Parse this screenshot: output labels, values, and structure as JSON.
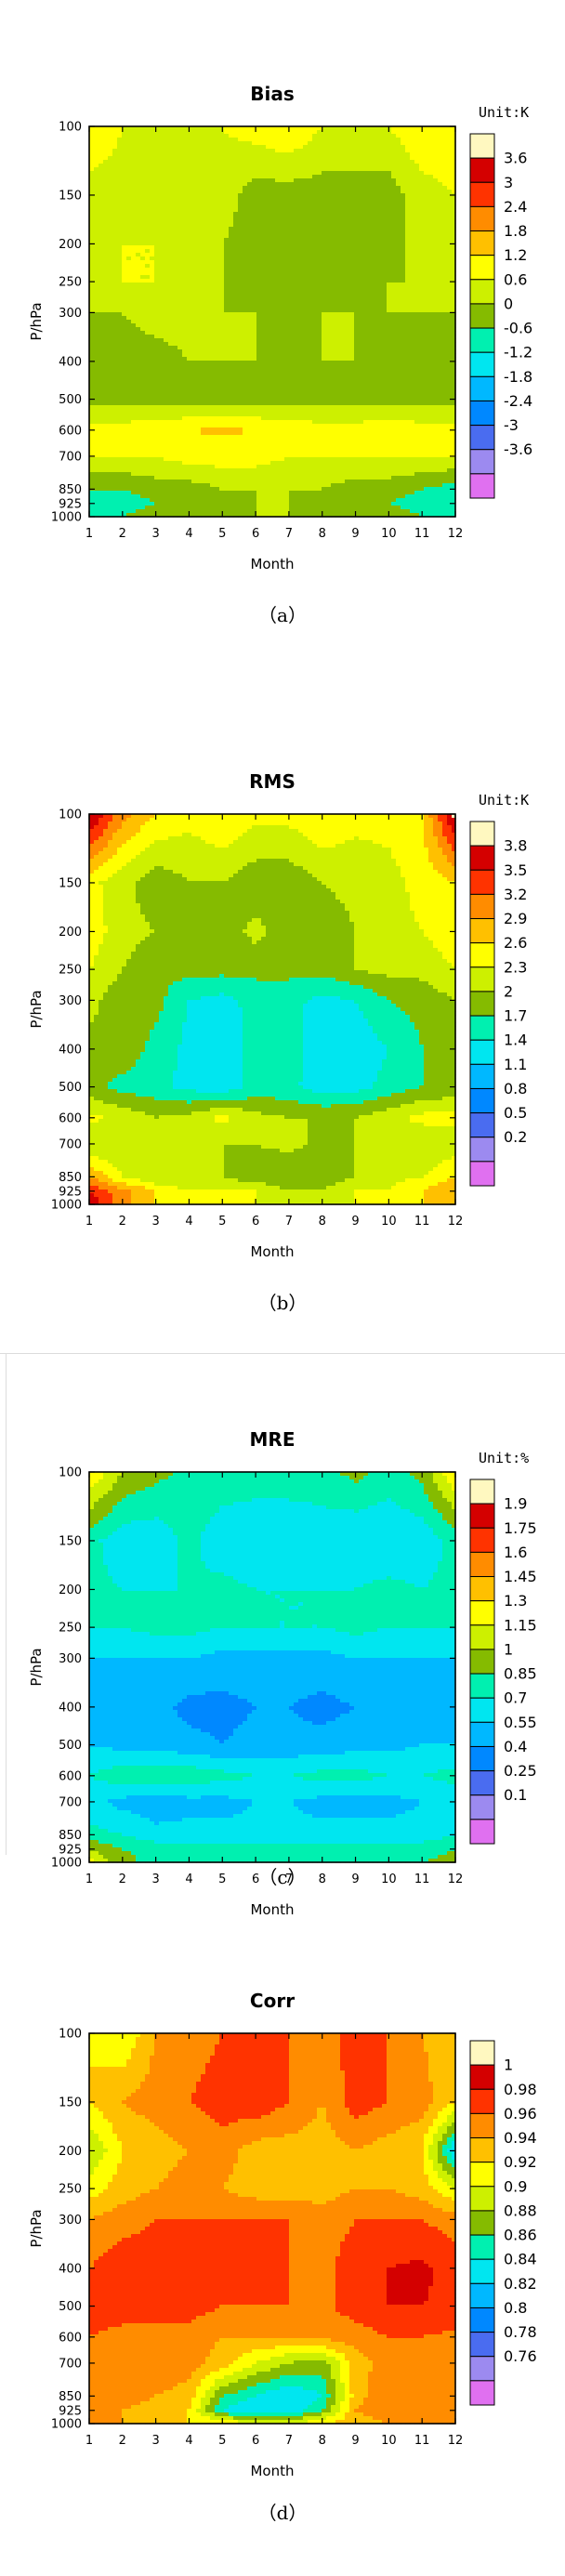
{
  "chart_data": [
    {
      "type": "heatmap",
      "title": "Bias",
      "xlabel": "Month",
      "ylabel": "P/hPa",
      "unit_label": "Unit:K",
      "caption": "（a）",
      "x": [
        1,
        2,
        3,
        4,
        5,
        6,
        7,
        8,
        9,
        10,
        11,
        12
      ],
      "y_levels": [
        100,
        150,
        200,
        250,
        300,
        400,
        500,
        600,
        700,
        850,
        925,
        1000
      ],
      "y_tick_labels": [
        "100",
        "150",
        "200",
        "250",
        "300",
        "400",
        "500",
        "600",
        "700",
        "850",
        "925",
        "1000"
      ],
      "x_tick_labels": [
        "1",
        "2",
        "3",
        "4",
        "5",
        "6",
        "7",
        "8",
        "9",
        "10",
        "11",
        "12"
      ],
      "colorbar_labels": [
        "3.6",
        "3",
        "2.4",
        "1.8",
        "1.2",
        "0.6",
        "0",
        "-0.6",
        "-1.2",
        "-1.8",
        "-2.4",
        "-3",
        "-3.6"
      ],
      "colorbar_colors": [
        "#fff8c0",
        "#d40000",
        "#ff3300",
        "#ff8c00",
        "#ffc000",
        "#ffff00",
        "#cdf000",
        "#85bb00",
        "#00f0b0",
        "#00e6f0",
        "#00b8ff",
        "#0088ff",
        "#4a6cf0",
        "#9c8af0",
        "#e070f0"
      ],
      "values": [
        [
          1.2,
          0.6,
          0.6,
          0.6,
          0.6,
          0.9,
          1.2,
          0.6,
          0.6,
          0.6,
          1.2,
          1.2
        ],
        [
          0.3,
          0.3,
          0.3,
          0.6,
          0.3,
          -0.3,
          -0.3,
          -0.3,
          -0.3,
          -0.3,
          0.3,
          0.6
        ],
        [
          0.6,
          0.6,
          0.6,
          0.3,
          0.0,
          -0.3,
          -0.6,
          -0.6,
          -0.3,
          -0.3,
          0.3,
          0.6
        ],
        [
          0.3,
          0.6,
          0.6,
          0.3,
          0.0,
          -0.3,
          -0.3,
          -0.3,
          -0.3,
          0.0,
          0.0,
          0.3
        ],
        [
          0.0,
          0.0,
          0.3,
          0.3,
          0.0,
          0.0,
          0.0,
          0.0,
          0.0,
          0.0,
          0.0,
          0.0
        ],
        [
          0.0,
          -0.3,
          -0.3,
          0.0,
          0.0,
          0.0,
          -0.3,
          0.0,
          0.0,
          -0.3,
          -0.3,
          0.0
        ],
        [
          -0.3,
          -0.3,
          -0.3,
          -0.3,
          -0.3,
          -0.3,
          -0.3,
          -0.3,
          -0.3,
          -0.3,
          -0.3,
          -0.3
        ],
        [
          0.9,
          0.9,
          1.0,
          1.2,
          1.3,
          1.2,
          1.0,
          0.9,
          0.9,
          1.0,
          0.9,
          0.9
        ],
        [
          0.6,
          0.6,
          0.6,
          0.9,
          0.9,
          0.9,
          0.6,
          0.6,
          0.6,
          0.6,
          0.6,
          0.6
        ],
        [
          -0.6,
          -0.6,
          -0.3,
          -0.3,
          0.0,
          0.0,
          0.0,
          0.0,
          -0.3,
          -0.3,
          -0.6,
          -0.9
        ],
        [
          -1.2,
          -0.9,
          -0.6,
          -0.3,
          -0.3,
          0.0,
          0.0,
          -0.3,
          -0.3,
          -0.6,
          -0.9,
          -1.2
        ],
        [
          -0.9,
          -0.6,
          -0.3,
          0.0,
          0.0,
          0.0,
          0.0,
          0.0,
          0.0,
          -0.3,
          -0.6,
          -0.9
        ]
      ]
    },
    {
      "type": "heatmap",
      "title": "RMS",
      "xlabel": "Month",
      "ylabel": "P/hPa",
      "unit_label": "Unit:K",
      "caption": "（b）",
      "x": [
        1,
        2,
        3,
        4,
        5,
        6,
        7,
        8,
        9,
        10,
        11,
        12
      ],
      "y_levels": [
        100,
        150,
        200,
        250,
        300,
        400,
        500,
        600,
        700,
        850,
        925,
        1000
      ],
      "y_tick_labels": [
        "100",
        "150",
        "200",
        "250",
        "300",
        "400",
        "500",
        "600",
        "700",
        "850",
        "925",
        "1000"
      ],
      "x_tick_labels": [
        "1",
        "2",
        "3",
        "4",
        "5",
        "6",
        "7",
        "8",
        "9",
        "10",
        "11",
        "12"
      ],
      "colorbar_labels": [
        "3.8",
        "3.5",
        "3.2",
        "2.9",
        "2.6",
        "2.3",
        "2",
        "1.7",
        "1.4",
        "1.1",
        "0.8",
        "0.5",
        "0.2"
      ],
      "colorbar_colors": [
        "#fff8c0",
        "#d40000",
        "#ff3300",
        "#ff8c00",
        "#ffc000",
        "#ffff00",
        "#cdf000",
        "#85bb00",
        "#00f0b0",
        "#00e6f0",
        "#00b8ff",
        "#0088ff",
        "#4a6cf0",
        "#9c8af0",
        "#e070f0"
      ],
      "values": [
        [
          3.9,
          3.0,
          2.6,
          2.4,
          2.6,
          2.4,
          2.4,
          2.6,
          2.4,
          2.4,
          2.6,
          3.9
        ],
        [
          2.4,
          2.1,
          1.8,
          2.0,
          2.0,
          1.8,
          1.8,
          2.0,
          2.1,
          2.2,
          2.4,
          2.6
        ],
        [
          2.5,
          2.1,
          2.0,
          1.9,
          1.8,
          2.1,
          1.8,
          1.8,
          2.0,
          2.2,
          2.3,
          2.5
        ],
        [
          2.3,
          2.0,
          1.8,
          1.8,
          1.8,
          1.8,
          1.8,
          1.8,
          2.0,
          2.1,
          2.1,
          2.3
        ],
        [
          2.1,
          1.8,
          1.8,
          1.4,
          1.3,
          1.5,
          1.5,
          1.3,
          1.4,
          1.7,
          1.8,
          2.0
        ],
        [
          1.9,
          1.9,
          1.6,
          1.3,
          1.2,
          1.5,
          1.6,
          1.1,
          1.2,
          1.4,
          1.7,
          1.9
        ],
        [
          1.8,
          1.6,
          1.5,
          1.3,
          1.2,
          1.5,
          1.5,
          1.2,
          1.3,
          1.5,
          1.7,
          1.8
        ],
        [
          2.4,
          2.2,
          2.0,
          2.1,
          2.4,
          2.1,
          2.0,
          2.0,
          2.0,
          2.2,
          2.4,
          2.4
        ],
        [
          2.0,
          2.0,
          2.2,
          2.1,
          2.0,
          2.0,
          2.1,
          1.9,
          2.0,
          2.1,
          2.0,
          2.1
        ],
        [
          2.9,
          2.3,
          2.0,
          2.0,
          2.0,
          1.8,
          1.7,
          1.8,
          2.0,
          2.2,
          2.3,
          2.6
        ],
        [
          3.5,
          3.0,
          2.6,
          2.3,
          2.3,
          2.3,
          2.0,
          2.0,
          2.3,
          2.3,
          2.6,
          2.9
        ],
        [
          3.8,
          3.0,
          2.6,
          2.4,
          2.4,
          2.3,
          2.3,
          2.3,
          2.3,
          2.4,
          2.6,
          2.9
        ]
      ]
    },
    {
      "type": "heatmap",
      "title": "MRE",
      "xlabel": "Month",
      "ylabel": "P/hPa",
      "unit_label": "Unit:%",
      "caption": "（c）",
      "x": [
        1,
        2,
        3,
        4,
        5,
        6,
        7,
        8,
        9,
        10,
        11,
        12
      ],
      "y_levels": [
        100,
        150,
        200,
        250,
        300,
        400,
        500,
        600,
        700,
        850,
        925,
        1000
      ],
      "y_tick_labels": [
        "100",
        "150",
        "200",
        "250",
        "300",
        "400",
        "500",
        "600",
        "700",
        "850",
        "925",
        "1000"
      ],
      "x_tick_labels": [
        "1",
        "2",
        "3",
        "4",
        "5",
        "6",
        "7",
        "8",
        "9",
        "10",
        "11",
        "12"
      ],
      "colorbar_labels": [
        "1.9",
        "1.75",
        "1.6",
        "1.45",
        "1.3",
        "1.15",
        "1",
        "0.85",
        "0.7",
        "0.55",
        "0.4",
        "0.25",
        "0.1"
      ],
      "colorbar_colors": [
        "#fff8c0",
        "#d40000",
        "#ff3300",
        "#ff8c00",
        "#ffc000",
        "#ffff00",
        "#cdf000",
        "#85bb00",
        "#00f0b0",
        "#00e6f0",
        "#00b8ff",
        "#0088ff",
        "#4a6cf0",
        "#9c8af0",
        "#e070f0"
      ],
      "values": [
        [
          1.3,
          1.0,
          0.9,
          0.8,
          0.8,
          0.8,
          0.8,
          0.8,
          0.9,
          0.8,
          0.9,
          1.3
        ],
        [
          0.75,
          0.6,
          0.6,
          0.75,
          0.6,
          0.55,
          0.55,
          0.6,
          0.55,
          0.55,
          0.6,
          0.75
        ],
        [
          0.75,
          0.7,
          0.7,
          0.7,
          0.75,
          0.7,
          0.7,
          0.7,
          0.7,
          0.75,
          0.7,
          0.75
        ],
        [
          0.7,
          0.7,
          0.75,
          0.75,
          0.7,
          0.7,
          0.7,
          0.7,
          0.75,
          0.7,
          0.7,
          0.7
        ],
        [
          0.55,
          0.55,
          0.55,
          0.55,
          0.5,
          0.5,
          0.5,
          0.5,
          0.55,
          0.55,
          0.55,
          0.55
        ],
        [
          0.5,
          0.5,
          0.45,
          0.35,
          0.35,
          0.4,
          0.4,
          0.35,
          0.4,
          0.45,
          0.5,
          0.55
        ],
        [
          0.55,
          0.5,
          0.5,
          0.45,
          0.4,
          0.45,
          0.45,
          0.45,
          0.5,
          0.5,
          0.55,
          0.55
        ],
        [
          0.7,
          0.8,
          0.8,
          0.8,
          0.75,
          0.7,
          0.7,
          0.75,
          0.75,
          0.7,
          0.7,
          0.75
        ],
        [
          0.6,
          0.5,
          0.45,
          0.5,
          0.5,
          0.55,
          0.55,
          0.5,
          0.5,
          0.5,
          0.55,
          0.6
        ],
        [
          0.75,
          0.7,
          0.6,
          0.6,
          0.6,
          0.6,
          0.6,
          0.6,
          0.6,
          0.6,
          0.6,
          0.7
        ],
        [
          1.0,
          0.85,
          0.8,
          0.75,
          0.75,
          0.75,
          0.75,
          0.75,
          0.75,
          0.8,
          0.8,
          0.85
        ],
        [
          1.2,
          0.9,
          0.8,
          0.8,
          0.8,
          0.8,
          0.8,
          0.8,
          0.8,
          0.8,
          0.85,
          0.9
        ]
      ]
    },
    {
      "type": "heatmap",
      "title": "Corr",
      "xlabel": "Month",
      "ylabel": "P/hPa",
      "unit_label": "",
      "caption": "（d）",
      "x": [
        1,
        2,
        3,
        4,
        5,
        6,
        7,
        8,
        9,
        10,
        11,
        12
      ],
      "y_levels": [
        100,
        150,
        200,
        250,
        300,
        400,
        500,
        600,
        700,
        850,
        925,
        1000
      ],
      "y_tick_labels": [
        "100",
        "150",
        "200",
        "250",
        "300",
        "400",
        "500",
        "600",
        "700",
        "850",
        "925",
        "1000"
      ],
      "x_tick_labels": [
        "1",
        "2",
        "3",
        "4",
        "5",
        "6",
        "7",
        "8",
        "9",
        "10",
        "11",
        "12"
      ],
      "colorbar_labels": [
        "1",
        "0.98",
        "0.96",
        "0.94",
        "0.92",
        "0.9",
        "0.88",
        "0.86",
        "0.84",
        "0.82",
        "0.8",
        "0.78",
        "0.76"
      ],
      "colorbar_colors": [
        "#fff8c0",
        "#d40000",
        "#ff3300",
        "#ff8c00",
        "#ffc000",
        "#ffff00",
        "#cdf000",
        "#85bb00",
        "#00f0b0",
        "#00e6f0",
        "#00b8ff",
        "#0088ff",
        "#4a6cf0",
        "#9c8af0",
        "#e070f0"
      ],
      "values": [
        [
          0.92,
          0.9,
          0.94,
          0.95,
          0.96,
          0.97,
          0.96,
          0.95,
          0.97,
          0.96,
          0.94,
          0.92
        ],
        [
          0.92,
          0.94,
          0.95,
          0.96,
          0.97,
          0.975,
          0.96,
          0.94,
          0.97,
          0.96,
          0.95,
          0.92
        ],
        [
          0.88,
          0.92,
          0.93,
          0.94,
          0.95,
          0.93,
          0.93,
          0.93,
          0.94,
          0.93,
          0.92,
          0.82
        ],
        [
          0.91,
          0.93,
          0.94,
          0.95,
          0.94,
          0.93,
          0.93,
          0.93,
          0.94,
          0.94,
          0.93,
          0.9
        ],
        [
          0.94,
          0.95,
          0.96,
          0.96,
          0.96,
          0.96,
          0.96,
          0.95,
          0.96,
          0.96,
          0.96,
          0.95
        ],
        [
          0.96,
          0.975,
          0.975,
          0.98,
          0.97,
          0.97,
          0.96,
          0.955,
          0.97,
          0.98,
          0.985,
          0.97
        ],
        [
          0.98,
          0.975,
          0.97,
          0.97,
          0.96,
          0.96,
          0.96,
          0.955,
          0.97,
          0.98,
          0.98,
          0.975
        ],
        [
          0.96,
          0.95,
          0.95,
          0.95,
          0.94,
          0.94,
          0.94,
          0.945,
          0.95,
          0.96,
          0.96,
          0.955
        ],
        [
          0.94,
          0.96,
          0.96,
          0.95,
          0.93,
          0.9,
          0.88,
          0.87,
          0.93,
          0.95,
          0.96,
          0.95
        ],
        [
          0.96,
          0.95,
          0.94,
          0.93,
          0.86,
          0.84,
          0.82,
          0.84,
          0.93,
          0.96,
          0.96,
          0.95
        ],
        [
          0.96,
          0.94,
          0.93,
          0.92,
          0.84,
          0.82,
          0.82,
          0.86,
          0.94,
          0.95,
          0.96,
          0.95
        ],
        [
          0.95,
          0.94,
          0.93,
          0.92,
          0.92,
          0.9,
          0.9,
          0.92,
          0.93,
          0.94,
          0.95,
          0.94
        ]
      ]
    }
  ]
}
